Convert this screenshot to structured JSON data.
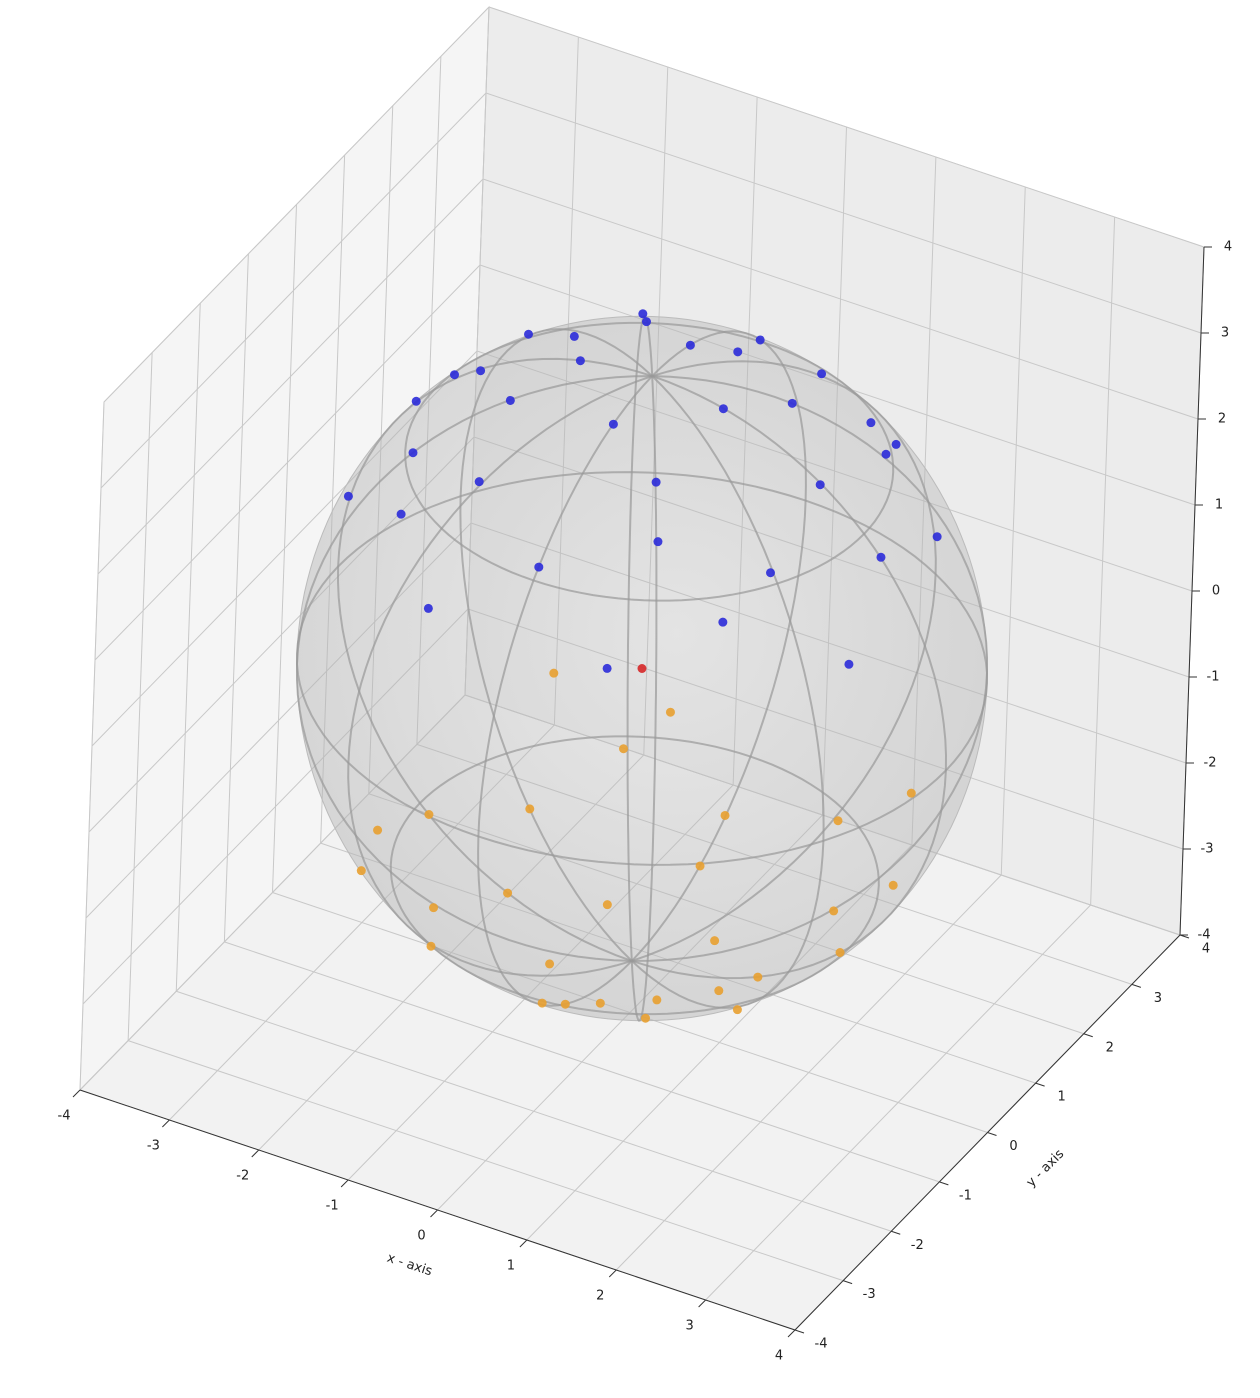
{
  "chart_data": {
    "type": "scatter3d",
    "xlabel": "x - axis",
    "ylabel": "y - axis",
    "xlim": [
      -4,
      4
    ],
    "ylim": [
      -4,
      4
    ],
    "zlim": [
      -4,
      4
    ],
    "xticks": [
      -4,
      -3,
      -2,
      -1,
      0,
      1,
      2,
      3,
      4
    ],
    "yticks": [
      -4,
      -3,
      -2,
      -1,
      0,
      1,
      2,
      3,
      4
    ],
    "zticks": [
      -4,
      -3,
      -2,
      -1,
      0,
      1,
      2,
      3,
      4
    ],
    "grid": true,
    "sphere": {
      "center": [
        0,
        0,
        0
      ],
      "radius": 3.4,
      "color": "#b4b4b4"
    },
    "series": [
      {
        "color": "#2b2bd9",
        "x": [
          0.8,
          0,
          -0.8,
          0,
          1.2,
          -0.7,
          -1.2,
          0.7,
          1.9,
          1.0,
          -1.0,
          -1.9,
          -1.0,
          1.0,
          2.0,
          0,
          -2.0,
          -2.0,
          0,
          2.0,
          2.6,
          1.8,
          -1.8,
          -2.6,
          -1.8,
          1.8,
          2.7,
          -0.5,
          -2.7,
          -1.0,
          1.0,
          1.0,
          -2.8,
          2.8
        ],
        "y": [
          0,
          0.8,
          0,
          -0.8,
          0.7,
          1.2,
          -0.7,
          -1.2,
          0,
          1.7,
          1.7,
          0,
          -1.7,
          -1.7,
          1.2,
          2.3,
          1.2,
          -1.2,
          -2.3,
          -1.2,
          0,
          1.8,
          1.8,
          0,
          -1.8,
          -1.8,
          1.0,
          2.8,
          1.0,
          -2.7,
          -2.7,
          2.8,
          -1.0,
          -1.0
        ],
        "z": [
          3.3,
          3.3,
          3.3,
          3.3,
          3.1,
          3.1,
          3.1,
          3.1,
          2.8,
          2.8,
          2.8,
          2.8,
          2.8,
          2.8,
          2.5,
          2.5,
          2.5,
          2.5,
          2.5,
          2.5,
          2.2,
          2.2,
          2.2,
          2.2,
          2.2,
          2.2,
          1.9,
          1.9,
          1.9,
          1.9,
          1.9,
          1.6,
          1.6,
          1.6
        ]
      },
      {
        "color": "#e8a030",
        "x": [
          0.6,
          -0.6,
          -0.6,
          0.6,
          1.4,
          0,
          -1.4,
          0,
          1.7,
          0,
          -1.7,
          -1.7,
          0,
          1.7,
          2.3,
          1.2,
          -1.2,
          -2.3,
          -1.2,
          1.2,
          2.4,
          -0.9,
          -2.4,
          0.9,
          2.0,
          -2.0,
          -2.0,
          2.0
        ],
        "y": [
          0.6,
          0.6,
          -0.6,
          -0.6,
          0,
          1.4,
          0,
          -1.4,
          1.0,
          1.9,
          1.0,
          -1.0,
          -1.9,
          -1.0,
          0,
          2.0,
          2.0,
          0,
          -2.0,
          -2.0,
          0.9,
          2.4,
          -0.9,
          -2.4,
          2.0,
          2.0,
          -2.0,
          -2.0
        ],
        "z": [
          -3.3,
          -3.3,
          -3.3,
          -3.3,
          -3.1,
          -3.1,
          -3.1,
          -3.1,
          -2.8,
          -2.8,
          -2.8,
          -2.8,
          -2.8,
          -2.8,
          -2.5,
          -2.5,
          -2.5,
          -2.5,
          -2.5,
          -2.5,
          -2.2,
          -2.2,
          -2.2,
          -2.2,
          -1.9,
          -1.9,
          -1.9,
          -1.9
        ]
      },
      {
        "color": "#d62728",
        "x": [
          0
        ],
        "y": [
          0
        ],
        "z": [
          0
        ]
      }
    ]
  }
}
